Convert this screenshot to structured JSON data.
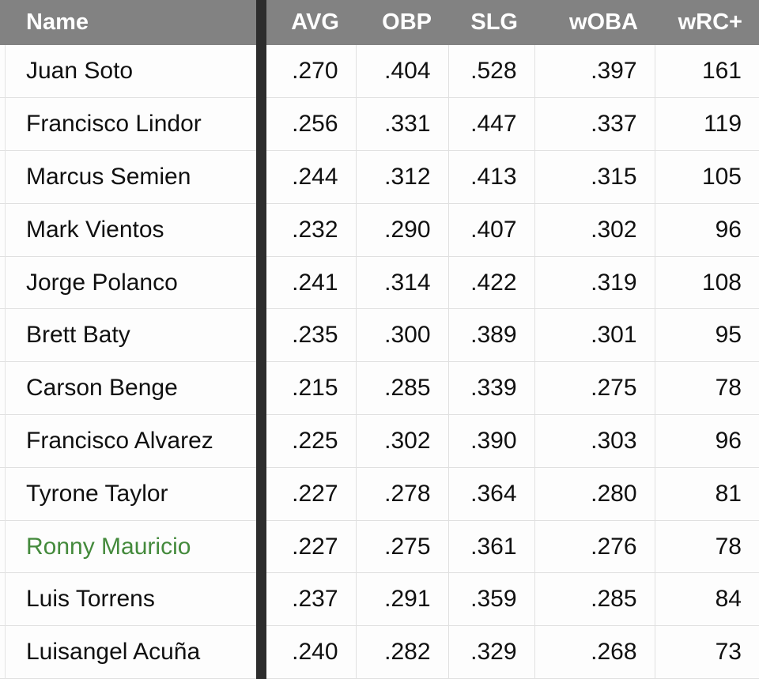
{
  "table": {
    "columns": [
      {
        "key": "name",
        "label": "Name"
      },
      {
        "key": "avg",
        "label": "AVG"
      },
      {
        "key": "obp",
        "label": "OBP"
      },
      {
        "key": "slg",
        "label": "SLG"
      },
      {
        "key": "woba",
        "label": "wOBA"
      },
      {
        "key": "wrc",
        "label": "wRC+"
      }
    ],
    "rows": [
      {
        "name": "Juan Soto",
        "avg": ".270",
        "obp": ".404",
        "slg": ".528",
        "woba": ".397",
        "wrc": "161",
        "highlight": false
      },
      {
        "name": "Francisco Lindor",
        "avg": ".256",
        "obp": ".331",
        "slg": ".447",
        "woba": ".337",
        "wrc": "119",
        "highlight": false
      },
      {
        "name": "Marcus Semien",
        "avg": ".244",
        "obp": ".312",
        "slg": ".413",
        "woba": ".315",
        "wrc": "105",
        "highlight": false
      },
      {
        "name": "Mark Vientos",
        "avg": ".232",
        "obp": ".290",
        "slg": ".407",
        "woba": ".302",
        "wrc": "96",
        "highlight": false
      },
      {
        "name": "Jorge Polanco",
        "avg": ".241",
        "obp": ".314",
        "slg": ".422",
        "woba": ".319",
        "wrc": "108",
        "highlight": false
      },
      {
        "name": "Brett Baty",
        "avg": ".235",
        "obp": ".300",
        "slg": ".389",
        "woba": ".301",
        "wrc": "95",
        "highlight": false
      },
      {
        "name": "Carson Benge",
        "avg": ".215",
        "obp": ".285",
        "slg": ".339",
        "woba": ".275",
        "wrc": "78",
        "highlight": false
      },
      {
        "name": "Francisco Alvarez",
        "avg": ".225",
        "obp": ".302",
        "slg": ".390",
        "woba": ".303",
        "wrc": "96",
        "highlight": false
      },
      {
        "name": "Tyrone Taylor",
        "avg": ".227",
        "obp": ".278",
        "slg": ".364",
        "woba": ".280",
        "wrc": "81",
        "highlight": false
      },
      {
        "name": "Ronny Mauricio",
        "avg": ".227",
        "obp": ".275",
        "slg": ".361",
        "woba": ".276",
        "wrc": "78",
        "highlight": true
      },
      {
        "name": "Luis Torrens",
        "avg": ".237",
        "obp": ".291",
        "slg": ".359",
        "woba": ".285",
        "wrc": "84",
        "highlight": false
      },
      {
        "name": "Luisangel Acuña",
        "avg": ".240",
        "obp": ".282",
        "slg": ".329",
        "woba": ".268",
        "wrc": "73",
        "highlight": false
      }
    ]
  },
  "colors": {
    "header_bg": "#828282",
    "header_text": "#ffffff",
    "divider_bar": "#2d2d2d",
    "row_bg": "#fdfdfd",
    "cell_border": "#e0e0e0",
    "body_text": "#101010",
    "highlight_name_text": "#448a3c"
  }
}
